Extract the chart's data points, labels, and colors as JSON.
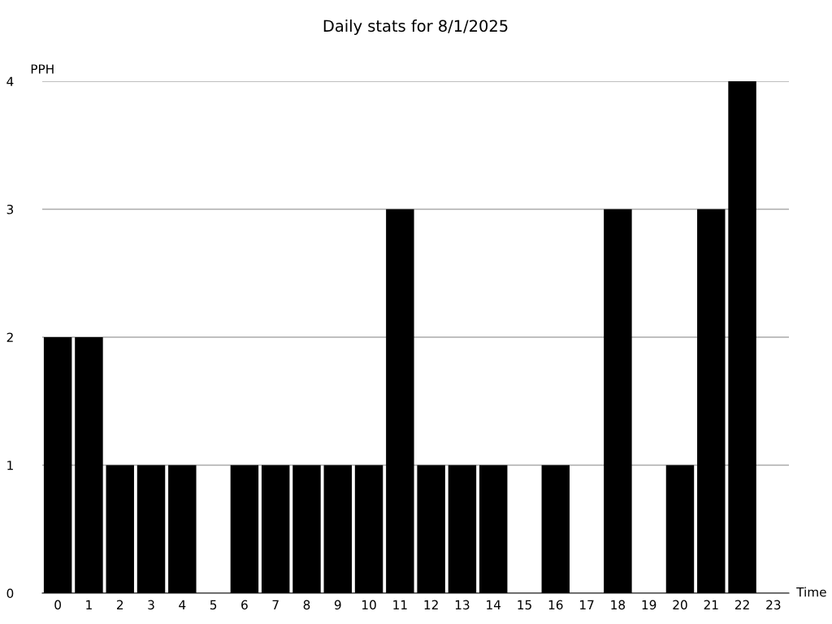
{
  "chart_data": {
    "type": "bar",
    "title": "Daily stats for 8/1/2025",
    "xlabel": "Time",
    "ylabel": "PPH",
    "categories": [
      "0",
      "1",
      "2",
      "3",
      "4",
      "5",
      "6",
      "7",
      "8",
      "9",
      "10",
      "11",
      "12",
      "13",
      "14",
      "15",
      "16",
      "17",
      "18",
      "19",
      "20",
      "21",
      "22",
      "23"
    ],
    "values": [
      2,
      2,
      1,
      1,
      1,
      0,
      1,
      1,
      1,
      1,
      1,
      3,
      1,
      1,
      1,
      0,
      1,
      0,
      3,
      0,
      1,
      3,
      4,
      0
    ],
    "color": "#000000",
    "ylim": [
      0,
      4
    ],
    "yticks": [
      0,
      1,
      2,
      3,
      4
    ],
    "grid": "y",
    "legend": false
  }
}
